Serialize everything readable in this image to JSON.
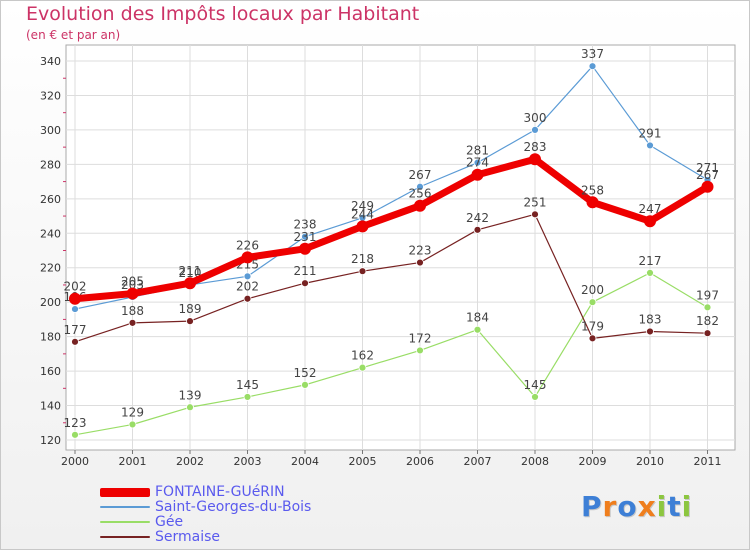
{
  "chart_data": {
    "type": "line",
    "title": "Evolution des Impôts locaux par Habitant",
    "subtitle": "(en € et par an)",
    "xlabel": "",
    "ylabel": "",
    "ylim": [
      120,
      340
    ],
    "yticks": [
      120,
      140,
      160,
      180,
      200,
      220,
      240,
      260,
      280,
      300,
      320,
      340
    ],
    "categories": [
      "2000",
      "2001",
      "2002",
      "2003",
      "2004",
      "2005",
      "2006",
      "2007",
      "2008",
      "2009",
      "2010",
      "2011"
    ],
    "grid": true,
    "legend_position": "bottom-left",
    "series": [
      {
        "name": "Saint-Georges-du-Bois",
        "color": "#5b9bd5",
        "values": [
          196,
          203,
          210,
          215,
          238,
          249,
          267,
          281,
          300,
          337,
          291,
          271
        ]
      },
      {
        "name": "Gée",
        "color": "#99dd66",
        "values": [
          123,
          129,
          139,
          145,
          152,
          162,
          172,
          184,
          145,
          200,
          217,
          197
        ]
      },
      {
        "name": "Sermaise",
        "color": "#772222",
        "values": [
          177,
          188,
          189,
          202,
          211,
          218,
          223,
          242,
          251,
          179,
          183,
          182
        ]
      },
      {
        "name": "FONTAINE-GUéRIN",
        "color": "#ee0000",
        "values": [
          202,
          205,
          211,
          226,
          231,
          244,
          256,
          274,
          283,
          258,
          247,
          267
        ]
      }
    ]
  },
  "branding": {
    "logo_letters": [
      "P",
      "r",
      "o",
      "x",
      "i",
      "t",
      "i"
    ],
    "logo_colors": [
      "#3d7fd6",
      "#ef7e1d",
      "#3d7fd6",
      "#ef7e1d",
      "#8cc63f",
      "#3d7fd6",
      "#8cc63f"
    ]
  }
}
